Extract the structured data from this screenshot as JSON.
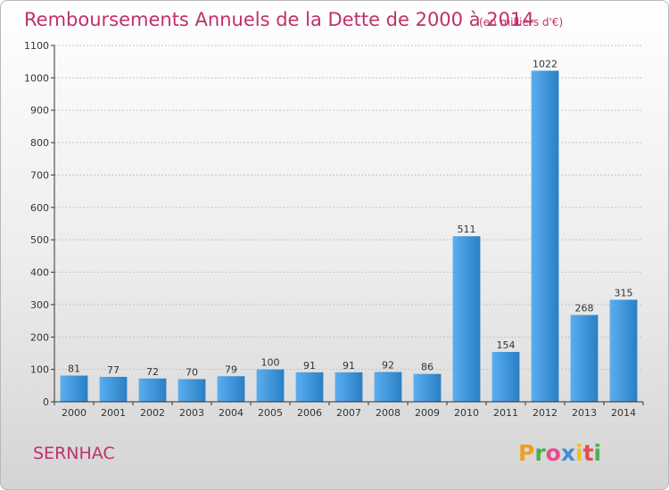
{
  "page": {
    "commune": "SERNHAC",
    "brand": {
      "letters": [
        "P",
        "r",
        "o",
        "x",
        "i",
        "t",
        "i"
      ],
      "colors": [
        "#f0a020",
        "#4caf50",
        "#e84c8b",
        "#3f8fd8",
        "#f0c020",
        "#e84c4c",
        "#4caf50"
      ]
    }
  },
  "chart_data": {
    "type": "bar",
    "title": "Remboursements Annuels de la Dette de 2000 à 2014",
    "subtitle": "(en milliers d'€)",
    "categories": [
      "2000",
      "2001",
      "2002",
      "2003",
      "2004",
      "2005",
      "2006",
      "2007",
      "2008",
      "2009",
      "2010",
      "2011",
      "2012",
      "2013",
      "2014"
    ],
    "values": [
      81,
      77,
      72,
      70,
      79,
      100,
      91,
      91,
      92,
      86,
      511,
      154,
      1022,
      268,
      315
    ],
    "ylim": [
      0,
      1100
    ],
    "yticks": [
      0,
      100,
      200,
      300,
      400,
      500,
      600,
      700,
      800,
      900,
      1000,
      1100
    ],
    "xlabel": "",
    "ylabel": "",
    "grid": true,
    "colors": {
      "bar_light": "#5aaef0",
      "bar_dark": "#2a7fc4",
      "grid": "#c4c4c4",
      "axis": "#333333",
      "title": "#c0306a"
    }
  }
}
